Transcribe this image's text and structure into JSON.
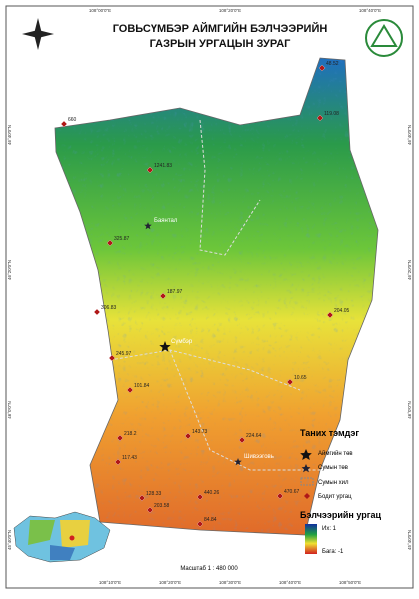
{
  "title": [
    "ГОВЬСҮМБЭР АЙМГИЙН БЭЛЧЭЭРИЙН",
    "ГАЗРЫН УРГАЦЫН ЗУРАГ"
  ],
  "top_coords": [
    "108°00'0\"E",
    "108°20'0\"E",
    "108°40'0\"E"
  ],
  "bottom_coords": [
    "108°10'0\"E",
    "108°20'0\"E",
    "108°30'0\"E",
    "108°40'0\"E",
    "108°50'0\"E"
  ],
  "left_coords": [
    "46°40'0\"N",
    "46°20'0\"N",
    "46°0'0\"N",
    "45°40'0\"N"
  ],
  "right_coords": [
    "46°40'0\"N",
    "46°20'0\"N",
    "46°0'0\"N",
    "45°40'0\"N"
  ],
  "places": [
    "Сүмбэр",
    "Шивээговь",
    "Баянтал"
  ],
  "sample_points": [
    "660",
    "1241.83",
    "325.87",
    "187.97",
    "306.83",
    "245.97",
    "101.84",
    "218.2",
    "117.43",
    "143.73",
    "224.64",
    "440.26",
    "470.67",
    "203.58",
    "128.33",
    "84.84",
    "204.05",
    "10.65",
    "48.52",
    "119.08"
  ],
  "legend": {
    "title": "Таних тэмдэг",
    "items": [
      "Аймгийн төв",
      "Сумын төв",
      "Сумын хил",
      "Бодит ургац"
    ]
  },
  "color_legend": {
    "title": "Бэлчээрийн ургац",
    "high": "Их: 1",
    "low": "Бага: -1"
  },
  "scale": "Масштаб 1 : 480 000"
}
